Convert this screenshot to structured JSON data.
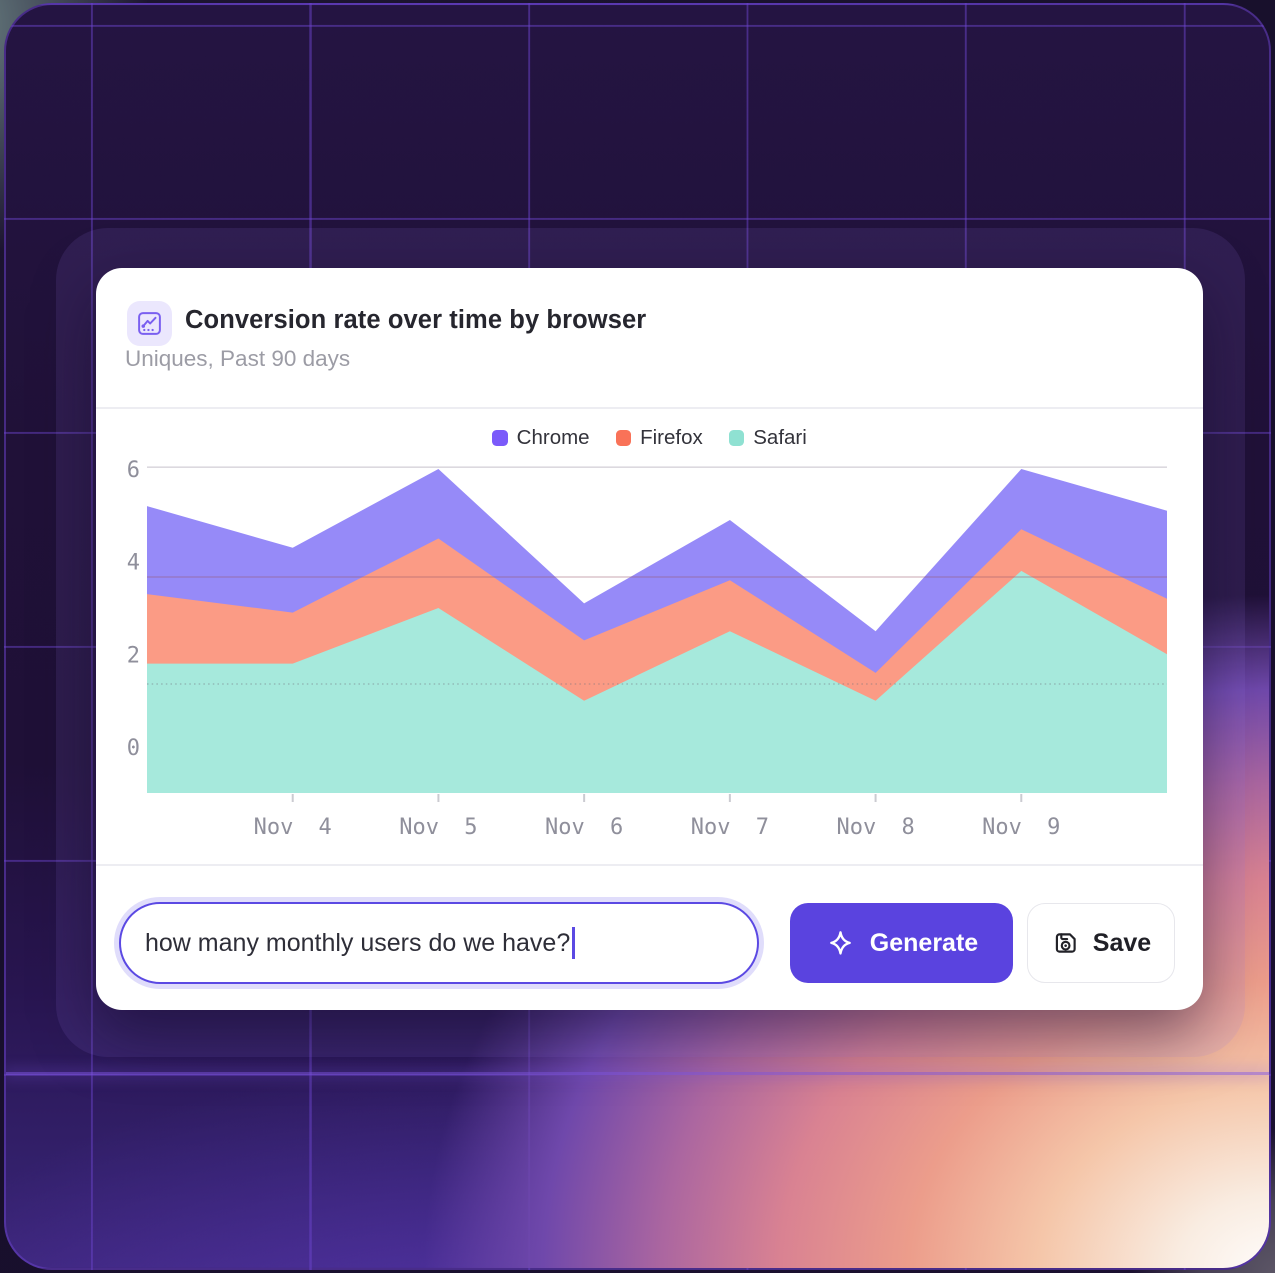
{
  "card": {
    "header": {
      "icon": "line-chart-icon",
      "title": "Conversion rate over time by browser",
      "subtitle": "Uniques, Past 90 days"
    },
    "chart_data": {
      "type": "area",
      "overlapping": true,
      "title": "Conversion rate over time by browser",
      "x_tick_labels": [
        "Nov 4",
        "Nov 5",
        "Nov 6",
        "Nov 7",
        "Nov 8",
        "Nov 9"
      ],
      "x_labeled_indices": [
        1,
        2,
        3,
        4,
        5,
        6
      ],
      "series": [
        {
          "name": "Chrome",
          "legend_color": "#7b5afa",
          "fill": "#968af8",
          "values": [
            5.2,
            4.3,
            6.0,
            3.1,
            4.9,
            2.5,
            6.0,
            5.1
          ]
        },
        {
          "name": "Firefox",
          "legend_color": "#f97258",
          "fill": "#fb9b85",
          "values": [
            3.3,
            2.9,
            4.5,
            2.3,
            3.6,
            1.6,
            4.7,
            3.2
          ]
        },
        {
          "name": "Safari",
          "legend_color": "#8fe1d2",
          "fill": "#a6e9dc",
          "values": [
            1.8,
            1.8,
            3.0,
            1.0,
            2.5,
            1.0,
            3.8,
            2.0
          ]
        }
      ],
      "y_ticks": [
        6,
        4,
        2,
        0
      ],
      "ylim": [
        -1,
        7
      ],
      "baseline": -1,
      "gridlines": [
        {
          "v": 6.04
        },
        {
          "v": 3.67
        },
        {
          "v": 1.36,
          "dashed": true
        }
      ],
      "legend_position": "top-center",
      "xlabel": "",
      "ylabel": ""
    },
    "footer": {
      "input_value": "how many monthly users do we have?",
      "generate_label": "Generate",
      "save_label": "Save"
    }
  }
}
